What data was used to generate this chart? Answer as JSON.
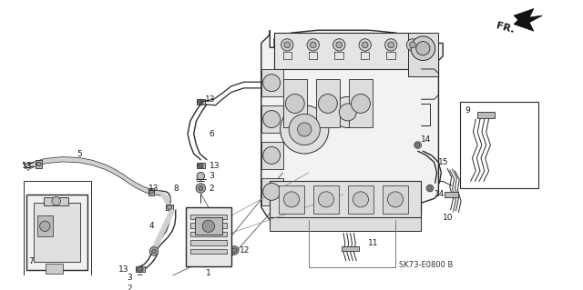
{
  "bg_color": "#ffffff",
  "line_color": "#2a2a2a",
  "bottom_label": "SK73-E0800 B",
  "fr_label": "FR.",
  "font_size": 6.5,
  "label_color": "#1a1a1a",
  "gray_fill": "#d8d8d8",
  "light_gray": "#eeeeee"
}
